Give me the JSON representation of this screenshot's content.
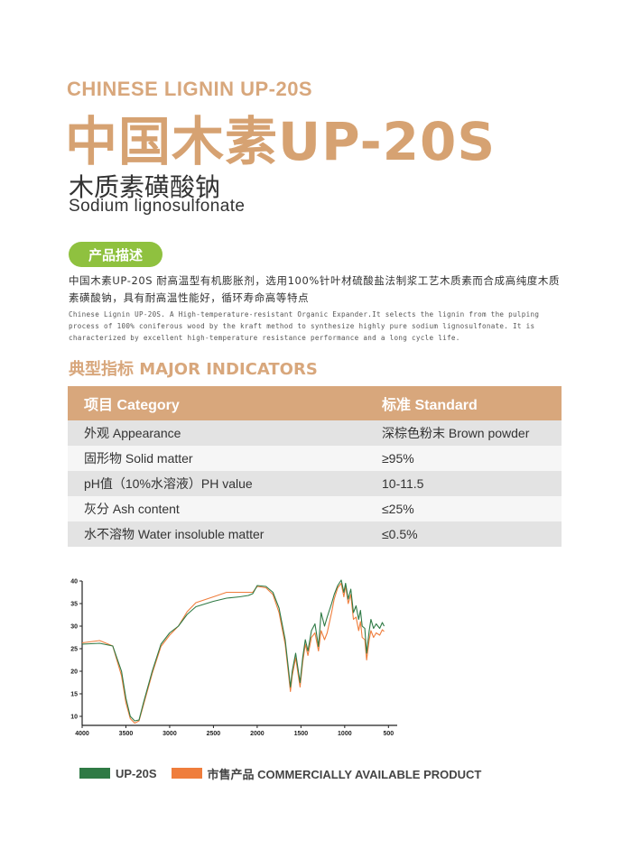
{
  "header": {
    "eng_title": "CHINESE LIGNIN UP-20S",
    "cn_title": "中国木素UP-20S",
    "subtitle_cn": "木质素磺酸钠",
    "subtitle_en": "Sodium lignosulfonate"
  },
  "description": {
    "badge": "产品描述",
    "text_cn": "中国木素UP-20S 耐高温型有机膨胀剂，选用100%针叶材硫酸盐法制浆工艺木质素而合成高纯度木质素磺酸钠，具有耐高温性能好，循环寿命高等特点",
    "text_en": "Chinese Lignin UP-20S. A High-temperature-resistant Organic Expander.It selects the lignin from the pulping process of 100% coniferous wood by the kraft method to synthesize highly pure sodium lignosulfonate. It is characterized by excellent high-temperature resistance performance and a long cycle life."
  },
  "indicators": {
    "title": "典型指标 MAJOR INDICATORS",
    "headers": [
      "项目 Category",
      "标准 Standard"
    ],
    "rows": [
      [
        "外观 Appearance",
        "深棕色粉末 Brown powder"
      ],
      [
        "固形物 Solid matter",
        "≥95%"
      ],
      [
        "pH值（10%水溶液）PH value",
        "10-11.5"
      ],
      [
        "灰分 Ash content",
        "≤25%"
      ],
      [
        "水不溶物  Water insoluble matter",
        "≤0.5%"
      ]
    ]
  },
  "chart_data": {
    "type": "line",
    "title": "",
    "xlabel": "",
    "ylabel": "",
    "xlim": [
      4000,
      400
    ],
    "ylim": [
      8,
      40
    ],
    "x_ticks": [
      4000,
      3500,
      3000,
      2500,
      2000,
      1500,
      1000,
      500
    ],
    "y_ticks": [
      10,
      15,
      20,
      25,
      30,
      35,
      40
    ],
    "grid": false,
    "series": [
      {
        "name": "UP-20S",
        "color": "#2f7a45",
        "points": [
          [
            4000,
            26.0
          ],
          [
            3800,
            26.2
          ],
          [
            3650,
            25.6
          ],
          [
            3550,
            20
          ],
          [
            3500,
            14
          ],
          [
            3450,
            10
          ],
          [
            3400,
            9.0
          ],
          [
            3350,
            9.2
          ],
          [
            3300,
            13
          ],
          [
            3200,
            20
          ],
          [
            3100,
            26
          ],
          [
            3000,
            28.5
          ],
          [
            2900,
            30
          ],
          [
            2800,
            32.6
          ],
          [
            2700,
            34.3
          ],
          [
            2500,
            35.5
          ],
          [
            2350,
            36.2
          ],
          [
            2200,
            36.5
          ],
          [
            2100,
            36.8
          ],
          [
            2050,
            37.2
          ],
          [
            2000,
            39
          ],
          [
            1900,
            38.8
          ],
          [
            1820,
            37.5
          ],
          [
            1750,
            34
          ],
          [
            1680,
            27
          ],
          [
            1640,
            20
          ],
          [
            1620,
            16.5
          ],
          [
            1600,
            20
          ],
          [
            1560,
            24
          ],
          [
            1510,
            17.5
          ],
          [
            1480,
            23
          ],
          [
            1450,
            27
          ],
          [
            1420,
            24.5
          ],
          [
            1380,
            29
          ],
          [
            1340,
            30.5
          ],
          [
            1300,
            25.5
          ],
          [
            1270,
            33
          ],
          [
            1230,
            30
          ],
          [
            1200,
            32
          ],
          [
            1150,
            35
          ],
          [
            1120,
            37
          ],
          [
            1080,
            39
          ],
          [
            1040,
            40.2
          ],
          [
            1010,
            37.5
          ],
          [
            990,
            39.5
          ],
          [
            960,
            36
          ],
          [
            930,
            38.2
          ],
          [
            900,
            33
          ],
          [
            870,
            34.5
          ],
          [
            840,
            31.5
          ],
          [
            820,
            33.5
          ],
          [
            800,
            30
          ],
          [
            770,
            29.5
          ],
          [
            750,
            24
          ],
          [
            720,
            29
          ],
          [
            700,
            31.5
          ],
          [
            670,
            29.5
          ],
          [
            640,
            30.5
          ],
          [
            600,
            29.5
          ],
          [
            570,
            30.8
          ],
          [
            550,
            30
          ]
        ],
        "note": ""
      },
      {
        "name": "市售产品 COMMERCIALLY AVAILABLE PRODUCT",
        "color": "#ef7d3c",
        "points": [
          [
            4000,
            26.3
          ],
          [
            3800,
            26.8
          ],
          [
            3650,
            25.6
          ],
          [
            3550,
            19
          ],
          [
            3500,
            13
          ],
          [
            3450,
            9.5
          ],
          [
            3400,
            8.5
          ],
          [
            3350,
            9.0
          ],
          [
            3300,
            12.5
          ],
          [
            3200,
            19.5
          ],
          [
            3100,
            25.5
          ],
          [
            3000,
            28
          ],
          [
            2900,
            30
          ],
          [
            2800,
            33.2
          ],
          [
            2700,
            35.2
          ],
          [
            2500,
            36.5
          ],
          [
            2350,
            37.5
          ],
          [
            2200,
            37.5
          ],
          [
            2100,
            37.5
          ],
          [
            2050,
            37.5
          ],
          [
            2000,
            38.8
          ],
          [
            1900,
            38.5
          ],
          [
            1820,
            37
          ],
          [
            1750,
            33
          ],
          [
            1680,
            26
          ],
          [
            1640,
            19
          ],
          [
            1620,
            15.5
          ],
          [
            1600,
            19
          ],
          [
            1560,
            23
          ],
          [
            1510,
            16.5
          ],
          [
            1480,
            22
          ],
          [
            1450,
            26
          ],
          [
            1420,
            23.5
          ],
          [
            1380,
            27.5
          ],
          [
            1340,
            28.5
          ],
          [
            1300,
            24.5
          ],
          [
            1270,
            29
          ],
          [
            1230,
            27
          ],
          [
            1200,
            28.5
          ],
          [
            1150,
            33
          ],
          [
            1120,
            36
          ],
          [
            1080,
            38.5
          ],
          [
            1040,
            39.5
          ],
          [
            1010,
            36.5
          ],
          [
            990,
            39
          ],
          [
            960,
            35
          ],
          [
            930,
            37
          ],
          [
            900,
            31.5
          ],
          [
            870,
            32
          ],
          [
            840,
            29
          ],
          [
            820,
            31
          ],
          [
            800,
            27.5
          ],
          [
            770,
            27
          ],
          [
            750,
            22.5
          ],
          [
            720,
            27
          ],
          [
            700,
            29
          ],
          [
            670,
            27.5
          ],
          [
            640,
            28.5
          ],
          [
            600,
            28
          ],
          [
            570,
            29.2
          ],
          [
            550,
            28.8
          ]
        ]
      }
    ]
  },
  "legend": {
    "items": [
      {
        "label": "UP-20S",
        "color": "#2f7a45"
      },
      {
        "label": "市售产品 COMMERCIALLY AVAILABLE PRODUCT",
        "color": "#ef7d3c"
      }
    ]
  }
}
